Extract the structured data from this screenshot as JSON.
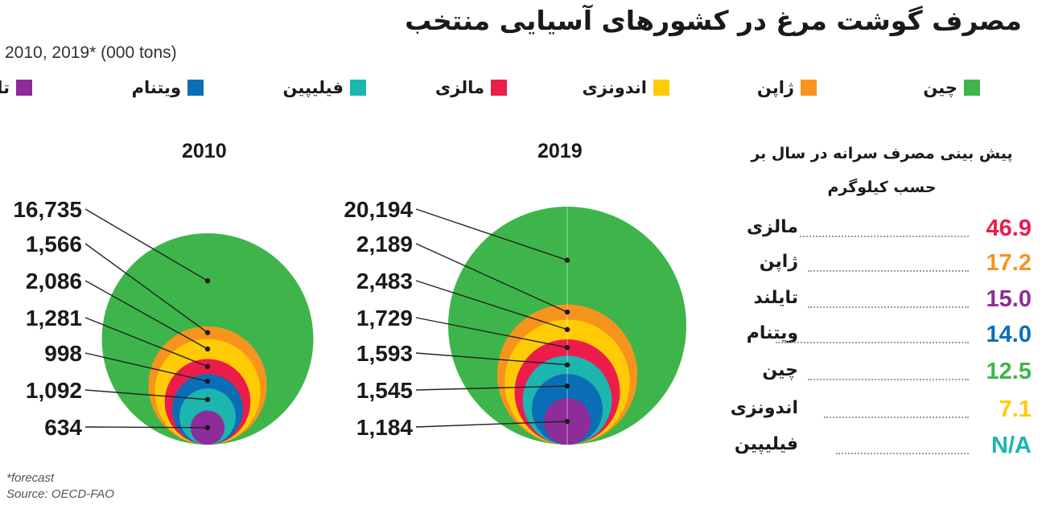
{
  "title": "مصرف گوشت مرغ در کشورهای آسیایی منتخب",
  "subtitle": "2010, 2019* (000 tons)",
  "colors": {
    "china": "#3db54a",
    "japan": "#f7941d",
    "indonesia": "#ffcb05",
    "malaysia": "#ec1c4b",
    "philippines": "#1db5b0",
    "vietnam": "#0a6eb7",
    "thailand": "#8e2c9a"
  },
  "legend": [
    {
      "key": "china",
      "label": "چین"
    },
    {
      "key": "japan",
      "label": "ژاپن"
    },
    {
      "key": "indonesia",
      "label": "اندونزی"
    },
    {
      "key": "malaysia",
      "label": "مالزی"
    },
    {
      "key": "philippines",
      "label": "فیلیپین"
    },
    {
      "key": "vietnam",
      "label": "ویتنام"
    },
    {
      "key": "thailand",
      "label": "تایلند"
    }
  ],
  "chart_data": {
    "type": "nested-circles",
    "units": "000 tons",
    "series": [
      {
        "year": "2010",
        "values": [
          {
            "key": "china",
            "value": 16735,
            "label": "16,735"
          },
          {
            "key": "japan",
            "value": 1566,
            "label": "1,566"
          },
          {
            "key": "indonesia",
            "value": 2086,
            "label": "2,086"
          },
          {
            "key": "malaysia",
            "value": 1281,
            "label": "1,281"
          },
          {
            "key": "vietnam",
            "value": 998,
            "label": "998"
          },
          {
            "key": "philippines",
            "value": 1092,
            "label": "1,092"
          },
          {
            "key": "thailand",
            "value": 634,
            "label": "634"
          }
        ]
      },
      {
        "year": "2019",
        "values": [
          {
            "key": "china",
            "value": 20194,
            "label": "20,194"
          },
          {
            "key": "japan",
            "value": 2189,
            "label": "2,189"
          },
          {
            "key": "indonesia",
            "value": 2483,
            "label": "2,483"
          },
          {
            "key": "malaysia",
            "value": 1729,
            "label": "1,729"
          },
          {
            "key": "philippines",
            "value": 1593,
            "label": "1,593"
          },
          {
            "key": "vietnam",
            "value": 1545,
            "label": "1,545"
          },
          {
            "key": "thailand",
            "value": 1184,
            "label": "1,184"
          }
        ]
      }
    ]
  },
  "per_capita": {
    "heading_line1": "پیش بینی مصرف سرانه در سال  بر",
    "heading_line2": "حسب کیلوگرم",
    "rows": [
      {
        "key": "malaysia",
        "country": "مالزی",
        "value": "46.9"
      },
      {
        "key": "japan",
        "country": "ژاپن",
        "value": "17.2"
      },
      {
        "key": "thailand",
        "country": "تایلند",
        "value": "15.0"
      },
      {
        "key": "vietnam",
        "country": "ویتنام",
        "value": "14.0"
      },
      {
        "key": "china",
        "country": "چین",
        "value": "12.5"
      },
      {
        "key": "indonesia",
        "country": "اندونزی",
        "value": "7.1"
      },
      {
        "key": "philippines",
        "country": "فیلیپین",
        "value": "N/A"
      }
    ]
  },
  "footnote": "*forecast",
  "source": "Source: OECD-FAO"
}
